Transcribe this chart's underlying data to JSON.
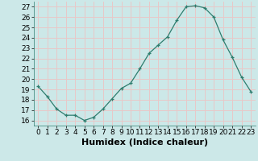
{
  "x": [
    0,
    1,
    2,
    3,
    4,
    5,
    6,
    7,
    8,
    9,
    10,
    11,
    12,
    13,
    14,
    15,
    16,
    17,
    18,
    19,
    20,
    21,
    22,
    23
  ],
  "y": [
    19.3,
    18.3,
    17.1,
    16.5,
    16.5,
    16.0,
    16.3,
    17.1,
    18.1,
    19.1,
    19.6,
    21.0,
    22.5,
    23.3,
    24.1,
    25.7,
    27.0,
    27.1,
    26.9,
    26.0,
    23.8,
    22.1,
    20.2,
    18.8
  ],
  "xlabel": "Humidex (Indice chaleur)",
  "xlim": [
    -0.5,
    23.5
  ],
  "ylim": [
    15.5,
    27.5
  ],
  "yticks": [
    16,
    17,
    18,
    19,
    20,
    21,
    22,
    23,
    24,
    25,
    26,
    27
  ],
  "xticks": [
    0,
    1,
    2,
    3,
    4,
    5,
    6,
    7,
    8,
    9,
    10,
    11,
    12,
    13,
    14,
    15,
    16,
    17,
    18,
    19,
    20,
    21,
    22,
    23
  ],
  "line_color": "#2e7d6e",
  "marker": "+",
  "bg_color": "#cce8e8",
  "grid_color": "#e8c8c8",
  "tick_fontsize": 6.5,
  "xlabel_fontsize": 8
}
